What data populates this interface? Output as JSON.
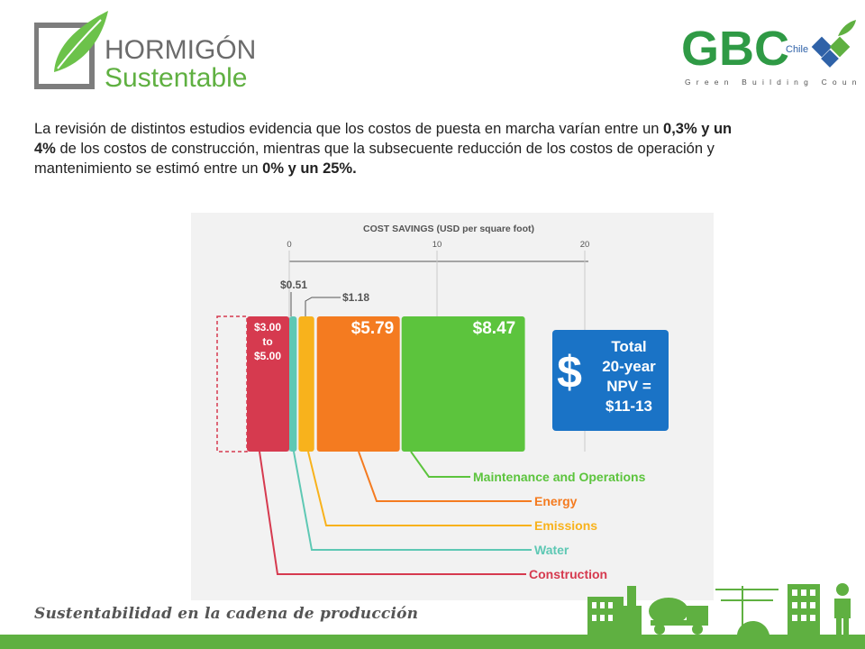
{
  "header": {
    "logo_left": {
      "line1": "HORMIGÓN",
      "line2": "Sustentable"
    },
    "logo_right": {
      "main": "GBC",
      "badge": "Chile",
      "tagline": "Green Building Council"
    }
  },
  "intro": {
    "parts": [
      {
        "text": "La revisión de distintos estudios evidencia que los costos de puesta en marcha varían entre un ",
        "bold": false
      },
      {
        "text": "0,3% y un 4%",
        "bold": true
      },
      {
        "text": " de los costos de construcción, mientras que la subsecuente reducción de los costos de operación y mantenimiento se estimó entre un ",
        "bold": false
      },
      {
        "text": "0% y un 25%.",
        "bold": true
      }
    ]
  },
  "chart_data": {
    "type": "bar",
    "title": "COST SAVINGS (USD per square foot)",
    "x_ticks": [
      0,
      10,
      20
    ],
    "xlim": [
      0,
      20
    ],
    "construction_label": [
      "$3.00",
      "to",
      "$5.00"
    ],
    "segments": [
      {
        "name": "Construction",
        "value_label": "$3.00 to $5.00",
        "color": "#d63a4f"
      },
      {
        "name": "Water",
        "value": 0.51,
        "value_label": "$0.51",
        "color": "#5ec8b4"
      },
      {
        "name": "Emissions",
        "value": 1.18,
        "value_label": "$1.18",
        "color": "#f8b21c"
      },
      {
        "name": "Energy",
        "value": 5.79,
        "value_label": "$5.79",
        "color": "#f47b20"
      },
      {
        "name": "Maintenance and Operations",
        "value": 8.47,
        "value_label": "$8.47",
        "color": "#5cc43d"
      }
    ],
    "total_box": {
      "symbol": "$",
      "lines": [
        "Total",
        "20-year",
        "NPV =",
        "$11-13"
      ],
      "color": "#1a73c6"
    },
    "legend_order": [
      "Maintenance and Operations",
      "Energy",
      "Emissions",
      "Water",
      "Construction"
    ]
  },
  "footer": {
    "title": "Sustentabilidad en la cadena de producción"
  }
}
